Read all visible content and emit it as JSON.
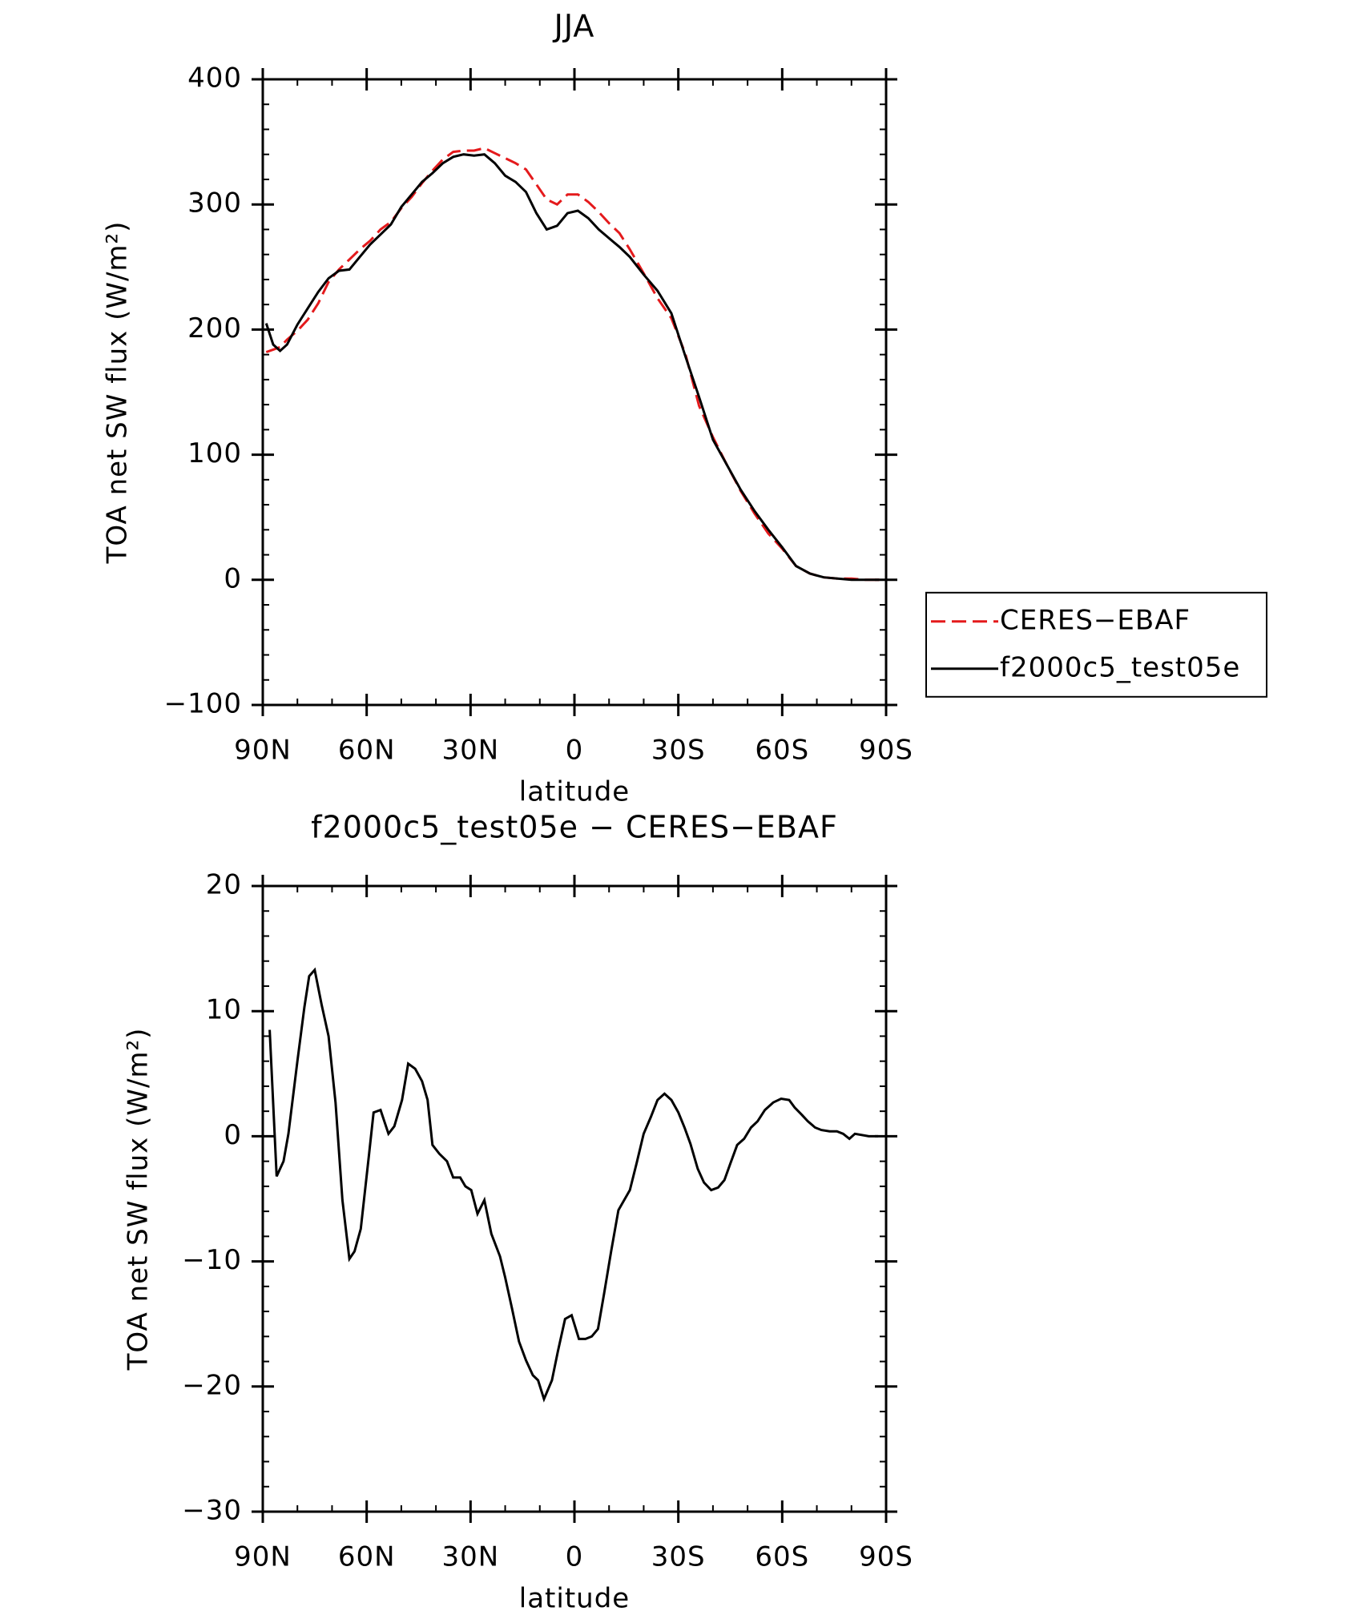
{
  "chart_data": [
    {
      "type": "line",
      "title": "JJA",
      "xlabel": "latitude",
      "ylabel": "TOA net SW flux (W/m²)",
      "x": [
        89,
        87,
        85,
        83,
        80,
        77,
        74,
        71,
        68,
        65,
        62,
        59,
        56,
        53,
        50,
        47,
        44,
        41,
        38,
        35,
        32,
        29,
        26,
        23,
        20,
        17,
        14,
        11,
        8,
        5,
        2,
        -1,
        -4,
        -7,
        -10,
        -13,
        -16,
        -20,
        -24,
        -28,
        -32,
        -36,
        -40,
        -44,
        -48,
        -52,
        -56,
        -60,
        -64,
        -68,
        -72,
        -76,
        -80,
        -84,
        -88
      ],
      "series": [
        {
          "name": "CERES−EBAF",
          "color": "#e41a1c",
          "dash": true,
          "values": [
            182,
            184,
            186,
            192,
            199,
            208,
            221,
            238,
            248,
            256,
            264,
            271,
            280,
            286,
            297,
            306,
            317,
            327,
            336,
            342,
            343,
            343,
            345,
            341,
            337,
            333,
            328,
            316,
            304,
            300,
            308,
            308,
            302,
            294,
            285,
            277,
            264,
            245,
            225,
            209,
            181,
            139,
            114,
            92,
            71,
            53,
            37,
            25,
            11,
            5,
            2,
            1,
            1,
            0,
            0
          ]
        },
        {
          "name": "f2000c5_test05e",
          "color": "#000000",
          "dash": false,
          "values": [
            205,
            188,
            183,
            188,
            204,
            217,
            230,
            241,
            247,
            248,
            258,
            268,
            276,
            284,
            298,
            308,
            318,
            325,
            333,
            338,
            340,
            339,
            340,
            333,
            323,
            318,
            310,
            293,
            280,
            283,
            293,
            295,
            289,
            280,
            273,
            266,
            258,
            244,
            231,
            213,
            179,
            146,
            112,
            92,
            72,
            55,
            40,
            26,
            11,
            5,
            2,
            1,
            0,
            0,
            0
          ]
        }
      ],
      "xlim": [
        90,
        -90
      ],
      "xticks": [
        {
          "value": 90,
          "label": "90N"
        },
        {
          "value": 60,
          "label": "60N"
        },
        {
          "value": 30,
          "label": "30N"
        },
        0,
        {
          "value": -30,
          "label": "30S"
        },
        {
          "value": -60,
          "label": "60S"
        },
        {
          "value": -90,
          "label": "90S"
        }
      ],
      "xminorticks": [
        80,
        70,
        50,
        40,
        20,
        10,
        -10,
        -20,
        -40,
        -50,
        -70,
        -80
      ],
      "ylim": [
        -100,
        400
      ],
      "yticks": [
        {
          "value": -100,
          "label": "−100"
        },
        0,
        100,
        200,
        300,
        400
      ],
      "yminorticks": [
        -80,
        -60,
        -40,
        -20,
        20,
        40,
        60,
        80,
        120,
        140,
        160,
        180,
        220,
        240,
        260,
        280,
        320,
        340,
        360,
        380
      ],
      "legend": "right"
    },
    {
      "type": "line",
      "title": "f2000c5_test05e − CERES−EBAF",
      "xlabel": "latitude",
      "ylabel": "TOA net SW flux (W/m²)",
      "x": [
        88,
        86,
        84,
        82.6,
        80,
        78,
        76.6,
        75,
        73,
        71,
        69,
        67,
        65,
        63.5,
        61.7,
        59.3,
        58,
        56,
        53.7,
        52,
        49.8,
        48,
        46,
        44,
        42.4,
        41,
        39,
        36.8,
        35,
        33,
        31.5,
        29.8,
        28,
        26,
        24,
        21.5,
        20,
        18,
        16,
        14,
        12,
        10.5,
        8.8,
        6.5,
        4.8,
        2.7,
        0.8,
        -1.3,
        -3.2,
        -5,
        -6.8,
        -8.6,
        -10.6,
        -12.7,
        -16,
        -18,
        -20,
        -22,
        -24,
        -26,
        -28,
        -30,
        -31.8,
        -33.5,
        -35.6,
        -37.4,
        -39.5,
        -41.5,
        -43.3,
        -45,
        -47,
        -49,
        -51,
        -52.9,
        -55,
        -57.4,
        -59.7,
        -62,
        -63.6,
        -65.7,
        -67.4,
        -69.5,
        -71.3,
        -73.7,
        -75.8,
        -77.6,
        -79.4,
        -81,
        -85,
        -87.7
      ],
      "series": [
        {
          "name": "f2000c5_test05e − CERES−EBAF",
          "color": "#000000",
          "dash": false,
          "values": [
            8.5,
            -3.2,
            -2,
            0.2,
            6,
            10.3,
            12.8,
            13.3,
            10.5,
            8,
            2.7,
            -5.1,
            -9.8,
            -9.2,
            -7.4,
            -1.4,
            1.9,
            2.1,
            0.2,
            0.8,
            2.9,
            5.8,
            5.4,
            4.4,
            2.9,
            -0.7,
            -1.4,
            -2,
            -3.3,
            -3.3,
            -4,
            -4.3,
            -6.2,
            -5.1,
            -7.8,
            -9.6,
            -11.3,
            -13.8,
            -16.4,
            -17.9,
            -19.1,
            -19.5,
            -21,
            -19.5,
            -17.2,
            -14.6,
            -14.3,
            -16.2,
            -16.2,
            -16,
            -15.4,
            -12.5,
            -9.2,
            -5.9,
            -4.3,
            -2.1,
            0.2,
            1.5,
            2.9,
            3.4,
            2.9,
            1.9,
            0.7,
            -0.6,
            -2.6,
            -3.7,
            -4.3,
            -4.1,
            -3.5,
            -2.2,
            -0.7,
            -0.2,
            0.7,
            1.2,
            2.1,
            2.7,
            3,
            2.9,
            2.3,
            1.7,
            1.2,
            0.7,
            0.5,
            0.4,
            0.4,
            0.2,
            -0.2,
            0.2,
            0,
            0
          ]
        }
      ],
      "xlim": [
        90,
        -90
      ],
      "xticks": [
        {
          "value": 90,
          "label": "90N"
        },
        {
          "value": 60,
          "label": "60N"
        },
        {
          "value": 30,
          "label": "30N"
        },
        0,
        {
          "value": -30,
          "label": "30S"
        },
        {
          "value": -60,
          "label": "60S"
        },
        {
          "value": -90,
          "label": "90S"
        }
      ],
      "xminorticks": [
        80,
        70,
        50,
        40,
        20,
        10,
        -10,
        -20,
        -40,
        -50,
        -70,
        -80
      ],
      "ylim": [
        -30,
        20
      ],
      "yticks": [
        {
          "value": -30,
          "label": "−30"
        },
        {
          "value": -20,
          "label": "−20"
        },
        {
          "value": -10,
          "label": "−10"
        },
        0,
        10,
        20
      ],
      "yminorticks": [
        -28,
        -26,
        -24,
        -22,
        -18,
        -16,
        -14,
        -12,
        -8,
        -6,
        -4,
        -2,
        2,
        4,
        6,
        8,
        12,
        14,
        16,
        18
      ]
    }
  ]
}
